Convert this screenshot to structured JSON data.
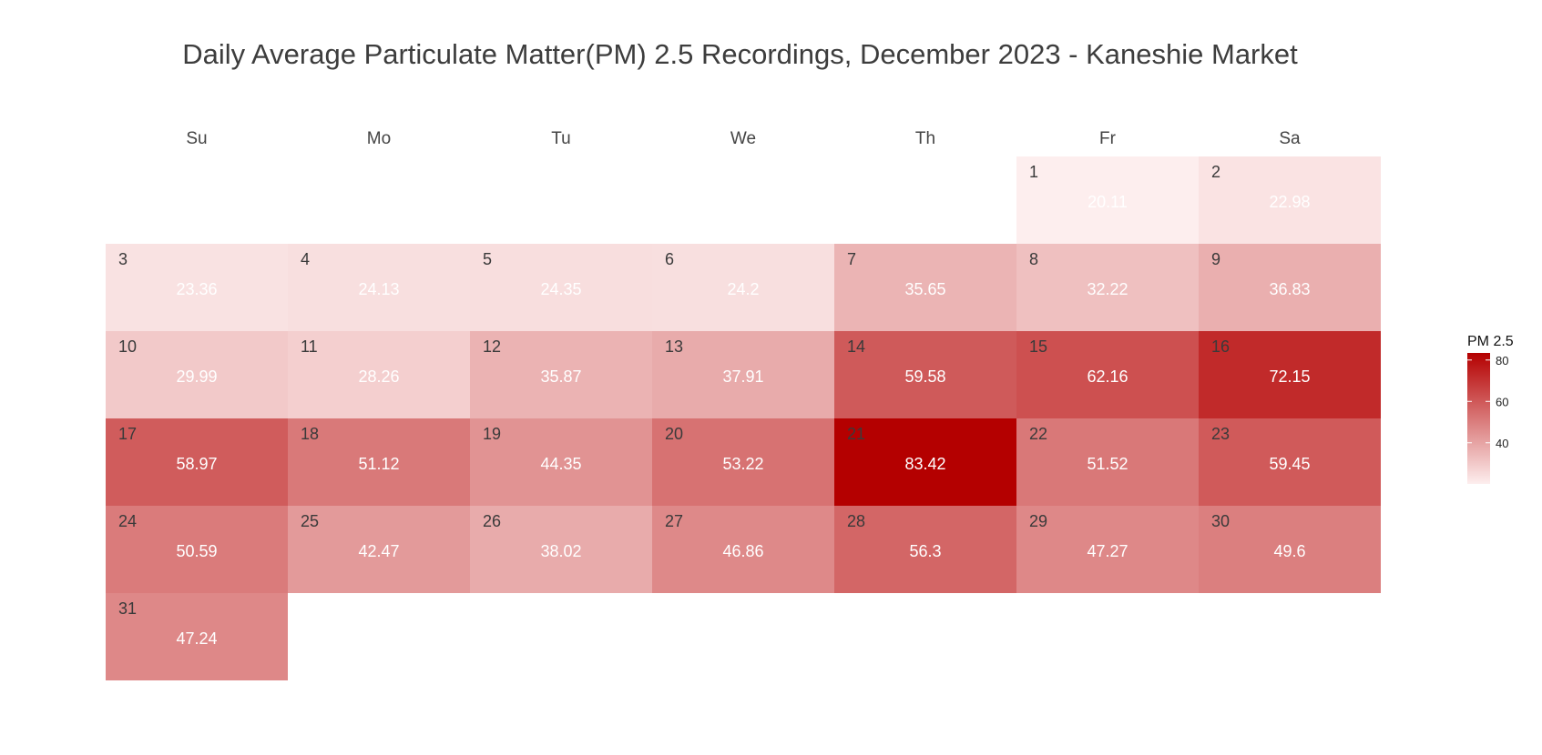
{
  "title": "Daily Average Particulate Matter(PM) 2.5 Recordings, December 2023 - Kaneshie Market",
  "chart_data": {
    "type": "heatmap",
    "title": "Daily Average Particulate Matter(PM) 2.5 Recordings, December 2023 - Kaneshie Market",
    "weekdays": [
      "Su",
      "Mo",
      "Tu",
      "We",
      "Th",
      "Fr",
      "Sa"
    ],
    "first_weekday_index": 5,
    "days": [
      {
        "day": 1,
        "value": 20.11
      },
      {
        "day": 2,
        "value": 22.98
      },
      {
        "day": 3,
        "value": 23.36
      },
      {
        "day": 4,
        "value": 24.13
      },
      {
        "day": 5,
        "value": 24.35
      },
      {
        "day": 6,
        "value": 24.2
      },
      {
        "day": 7,
        "value": 35.65
      },
      {
        "day": 8,
        "value": 32.22
      },
      {
        "day": 9,
        "value": 36.83
      },
      {
        "day": 10,
        "value": 29.99
      },
      {
        "day": 11,
        "value": 28.26
      },
      {
        "day": 12,
        "value": 35.87
      },
      {
        "day": 13,
        "value": 37.91
      },
      {
        "day": 14,
        "value": 59.58
      },
      {
        "day": 15,
        "value": 62.16
      },
      {
        "day": 16,
        "value": 72.15
      },
      {
        "day": 17,
        "value": 58.97
      },
      {
        "day": 18,
        "value": 51.12
      },
      {
        "day": 19,
        "value": 44.35
      },
      {
        "day": 20,
        "value": 53.22
      },
      {
        "day": 21,
        "value": 83.42
      },
      {
        "day": 22,
        "value": 51.52
      },
      {
        "day": 23,
        "value": 59.45
      },
      {
        "day": 24,
        "value": 50.59
      },
      {
        "day": 25,
        "value": 42.47
      },
      {
        "day": 26,
        "value": 38.02
      },
      {
        "day": 27,
        "value": 46.86
      },
      {
        "day": 28,
        "value": 56.3
      },
      {
        "day": 29,
        "value": 47.27
      },
      {
        "day": 30,
        "value": 49.6
      },
      {
        "day": 31,
        "value": 47.24
      }
    ],
    "legend": {
      "title": "PM 2.5",
      "ticks": [
        40,
        60,
        80
      ],
      "range": [
        20.11,
        83.42
      ],
      "low_color": "#fdeeee",
      "high_color": "#b40000"
    }
  }
}
